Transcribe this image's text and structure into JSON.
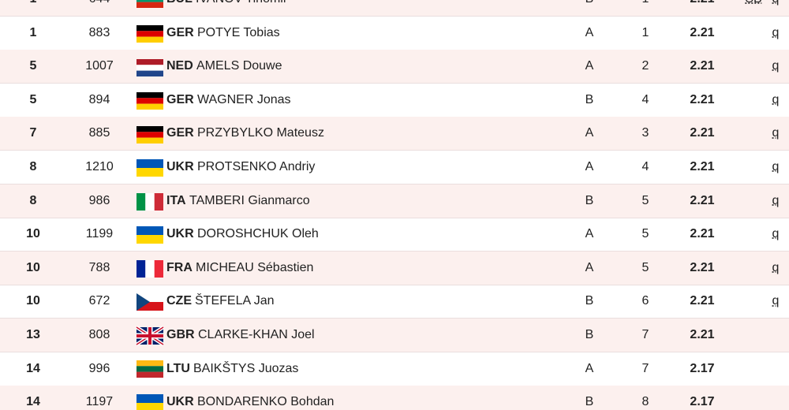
{
  "table": {
    "rows": [
      {
        "rank": "1",
        "bib": "644",
        "country": "BUL",
        "name": "IVANOV Tihomir",
        "group": "B",
        "position": "1",
        "mark": "2.21",
        "record": "SB",
        "qualification": "q"
      },
      {
        "rank": "1",
        "bib": "883",
        "country": "GER",
        "name": "POTYE Tobias",
        "group": "A",
        "position": "1",
        "mark": "2.21",
        "qualification": "q"
      },
      {
        "rank": "5",
        "bib": "1007",
        "country": "NED",
        "name": "AMELS Douwe",
        "group": "A",
        "position": "2",
        "mark": "2.21",
        "qualification": "q"
      },
      {
        "rank": "5",
        "bib": "894",
        "country": "GER",
        "name": "WAGNER Jonas",
        "group": "B",
        "position": "4",
        "mark": "2.21",
        "qualification": "q"
      },
      {
        "rank": "7",
        "bib": "885",
        "country": "GER",
        "name": "PRZYBYLKO Mateusz",
        "group": "A",
        "position": "3",
        "mark": "2.21",
        "qualification": "q"
      },
      {
        "rank": "8",
        "bib": "1210",
        "country": "UKR",
        "name": "PROTSENKO Andriy",
        "group": "A",
        "position": "4",
        "mark": "2.21",
        "qualification": "q"
      },
      {
        "rank": "8",
        "bib": "986",
        "country": "ITA",
        "name": "TAMBERI Gianmarco",
        "group": "B",
        "position": "5",
        "mark": "2.21",
        "qualification": "q"
      },
      {
        "rank": "10",
        "bib": "1199",
        "country": "UKR",
        "name": "DOROSHCHUK Oleh",
        "group": "A",
        "position": "5",
        "mark": "2.21",
        "qualification": "q"
      },
      {
        "rank": "10",
        "bib": "788",
        "country": "FRA",
        "name": "MICHEAU Sébastien",
        "group": "A",
        "position": "5",
        "mark": "2.21",
        "qualification": "q"
      },
      {
        "rank": "10",
        "bib": "672",
        "country": "CZE",
        "name": "ŠTEFELA Jan",
        "group": "B",
        "position": "6",
        "mark": "2.21",
        "qualification": "q"
      },
      {
        "rank": "13",
        "bib": "808",
        "country": "GBR",
        "name": "CLARKE-KHAN Joel",
        "group": "B",
        "position": "7",
        "mark": "2.21"
      },
      {
        "rank": "14",
        "bib": "996",
        "country": "LTU",
        "name": "BAIKŠTYS Juozas",
        "group": "A",
        "position": "7",
        "mark": "2.17"
      },
      {
        "rank": "14",
        "bib": "1197",
        "country": "UKR",
        "name": "BONDARENKO Bohdan",
        "group": "B",
        "position": "8",
        "mark": "2.17"
      }
    ]
  }
}
